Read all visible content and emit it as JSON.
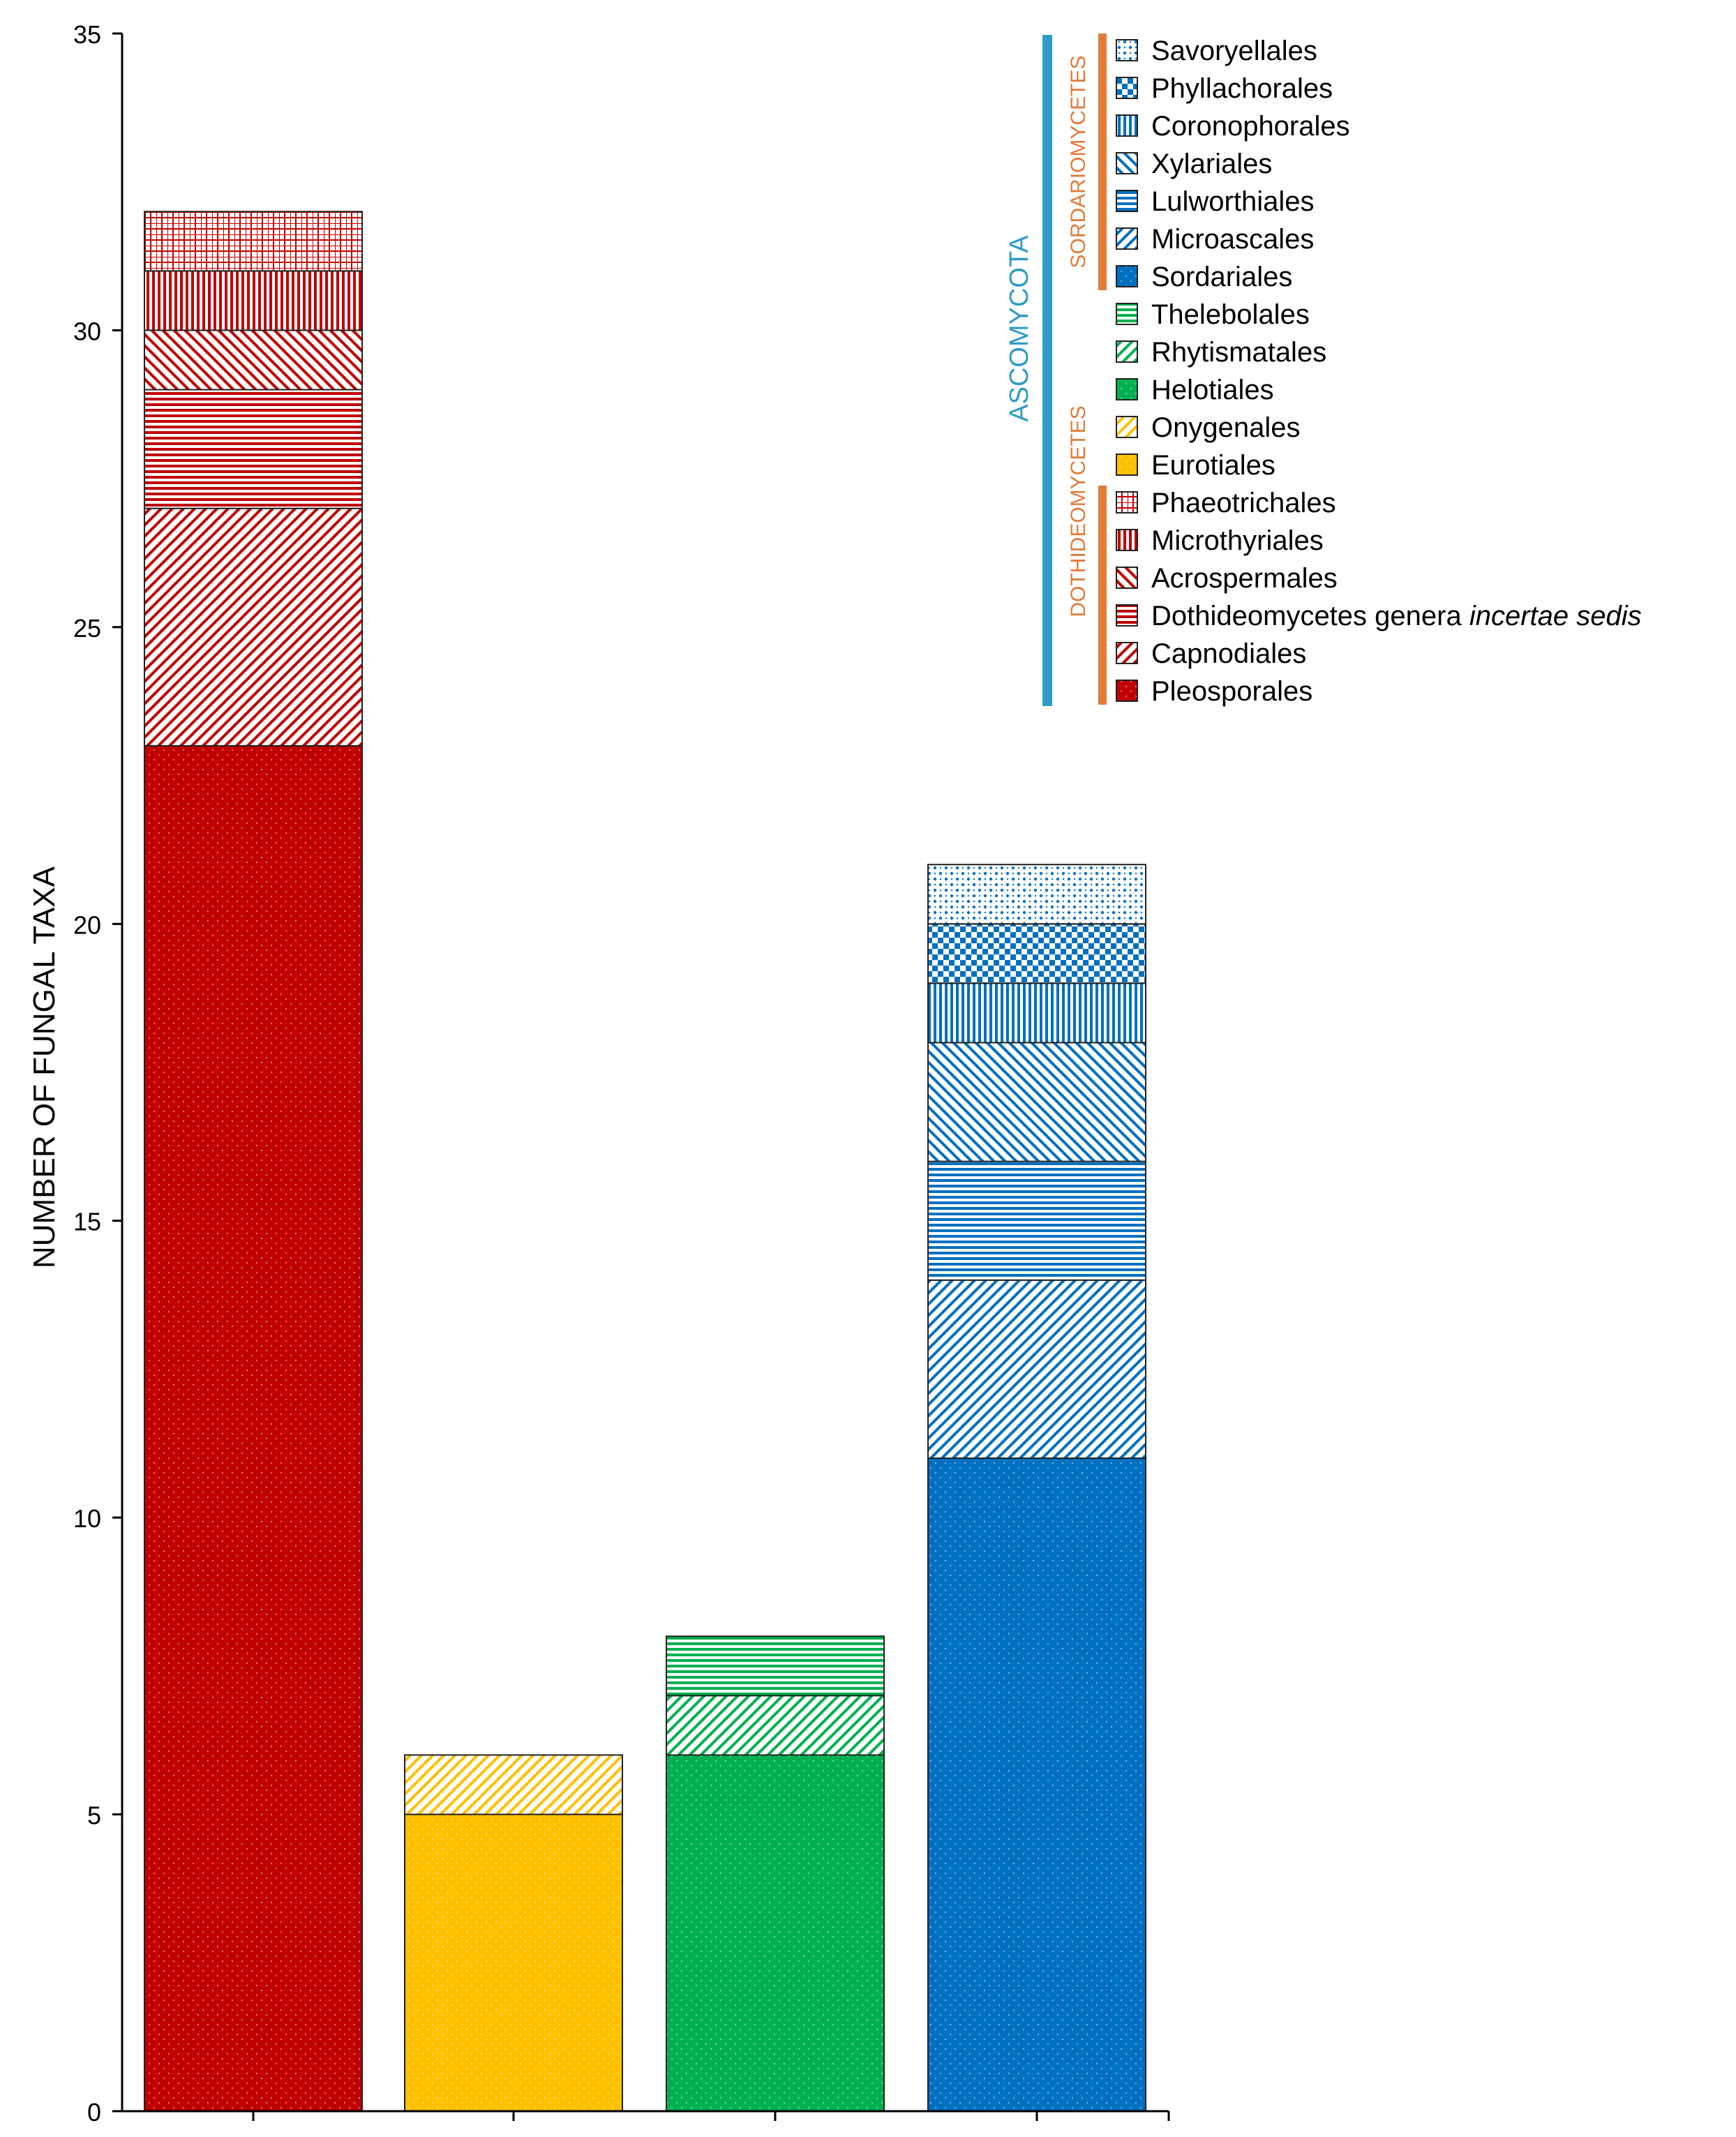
{
  "chart_data": {
    "type": "bar",
    "stacked": true,
    "ylabel": "NUMBER OF FUNGAL TAXA",
    "xlabel": "",
    "ylim": [
      0,
      35
    ],
    "yticks": [
      0,
      5,
      10,
      15,
      20,
      25,
      30,
      35
    ],
    "grid": false,
    "legend_placement": "top-right",
    "categories": [
      "",
      "",
      "",
      ""
    ],
    "bars": [
      {
        "color": "#c00000",
        "segments": [
          {
            "order": "Pleosporales",
            "value": 23
          },
          {
            "order": "Capnodiales",
            "value": 4
          },
          {
            "order": "Dothideomycetes genera incertae sedis",
            "value": 2
          },
          {
            "order": "Acrospermales",
            "value": 1
          },
          {
            "order": "Microthyriales",
            "value": 1
          },
          {
            "order": "Phaeotrichales",
            "value": 1
          }
        ]
      },
      {
        "color": "#ffc000",
        "segments": [
          {
            "order": "Eurotiales",
            "value": 5
          },
          {
            "order": "Onygenales",
            "value": 1
          }
        ]
      },
      {
        "color": "#00b050",
        "segments": [
          {
            "order": "Helotiales",
            "value": 6
          },
          {
            "order": "Rhytismatales",
            "value": 1
          },
          {
            "order": "Thelebolales",
            "value": 1
          }
        ]
      },
      {
        "color": "#0070c0",
        "segments": [
          {
            "order": "Sordariales",
            "value": 11
          },
          {
            "order": "Microascales",
            "value": 3
          },
          {
            "order": "Lulworthiales",
            "value": 2
          },
          {
            "order": "Xylariales",
            "value": 2
          },
          {
            "order": "Coronophorales",
            "value": 1
          },
          {
            "order": "Phyllachorales",
            "value": 1
          },
          {
            "order": "Savoryellales",
            "value": 1
          }
        ]
      }
    ],
    "legend": [
      {
        "label": "Savoryellales",
        "color": "#0070c0",
        "pattern": "dots"
      },
      {
        "label": "Phyllachorales",
        "color": "#0070c0",
        "pattern": "check"
      },
      {
        "label": "Coronophorales",
        "color": "#0070c0",
        "pattern": "vertical"
      },
      {
        "label": "Xylariales",
        "color": "#0070c0",
        "pattern": "back-diagonal"
      },
      {
        "label": "Lulworthiales",
        "color": "#0070c0",
        "pattern": "horizontal"
      },
      {
        "label": "Microascales",
        "color": "#0070c0",
        "pattern": "diagonal"
      },
      {
        "label": "Sordariales",
        "color": "#0070c0",
        "pattern": "solid"
      },
      {
        "label": "Thelebolales",
        "color": "#00b050",
        "pattern": "horizontal"
      },
      {
        "label": "Rhytismatales",
        "color": "#00b050",
        "pattern": "diagonal"
      },
      {
        "label": "Helotiales",
        "color": "#00b050",
        "pattern": "solid"
      },
      {
        "label": "Onygenales",
        "color": "#ffc000",
        "pattern": "diagonal"
      },
      {
        "label": "Eurotiales",
        "color": "#ffc000",
        "pattern": "solid"
      },
      {
        "label": "Phaeotrichales",
        "color": "#c00000",
        "pattern": "grid"
      },
      {
        "label": "Microthyriales",
        "color": "#c00000",
        "pattern": "vertical"
      },
      {
        "label": "Acrospermales",
        "color": "#c00000",
        "pattern": "back-diagonal"
      },
      {
        "label": "Dothideomycetes genera incertae sedis",
        "label_plain": "Dothideomycetes genera ",
        "label_italic": "incertae sedis",
        "color": "#c00000",
        "pattern": "horizontal"
      },
      {
        "label": "Capnodiales",
        "color": "#c00000",
        "pattern": "diagonal"
      },
      {
        "label": "Pleosporales",
        "color": "#c00000",
        "pattern": "solid"
      }
    ],
    "groups": {
      "phylum": {
        "label": "ASCOMYCOTA",
        "color": "#2e9bc6"
      },
      "classes": [
        {
          "label": "SORDARIOMYCETES",
          "color": "#e07b39"
        },
        {
          "label": "DOTHIDEOMYCETES",
          "color": "#e07b39"
        }
      ]
    }
  }
}
